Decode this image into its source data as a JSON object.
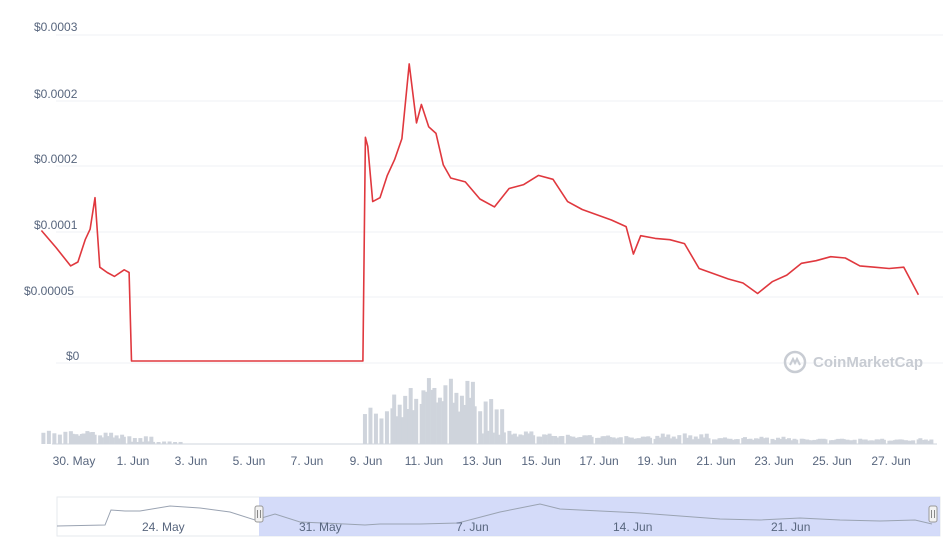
{
  "colors": {
    "price_line": "#e0383e",
    "volume": "#cfd4dc",
    "grid": "#eff2f5",
    "axis_text": "#58667e",
    "navigator_band": "#cdd5f8"
  },
  "watermark": {
    "text": "CoinMarketCap",
    "icon": "coinmarketcap-logo-icon"
  },
  "y_axis": {
    "ticks": [
      "$0.0003",
      "$0.0002",
      "$0.0002",
      "$0.0001",
      "$0.00005",
      "$0"
    ]
  },
  "x_axis": {
    "ticks": [
      "30. May",
      "1. Jun",
      "3. Jun",
      "5. Jun",
      "7. Jun",
      "9. Jun",
      "11. Jun",
      "13. Jun",
      "15. Jun",
      "17. Jun",
      "19. Jun",
      "21. Jun",
      "23. Jun",
      "25. Jun",
      "27. Jun"
    ]
  },
  "navigator": {
    "ticks": [
      "24. May",
      "31. May",
      "7. Jun",
      "14. Jun",
      "21. Jun"
    ],
    "range": [
      "2021-05-29",
      "2021-06-28"
    ]
  },
  "chart_data": {
    "type": "line",
    "title": "",
    "xlabel": "",
    "ylabel": "",
    "x_type": "date",
    "ylim": [
      0,
      0.00025
    ],
    "grid": true,
    "series": [
      {
        "type": "line",
        "x": [
          "2021-05-29",
          "2021-05-29 12:00",
          "2021-05-30",
          "2021-05-30 06:00",
          "2021-05-30 12:00",
          "2021-05-30 16:00",
          "2021-05-30 20:00",
          "2021-05-31",
          "2021-05-31 06:00",
          "2021-05-31 12:00",
          "2021-05-31 20:00",
          "2021-06-01",
          "2021-06-01 02:00",
          "2021-06-01 04:00",
          "2021-06-09 00:00",
          "2021-06-09 02:00",
          "2021-06-09 04:00",
          "2021-06-09 08:00",
          "2021-06-09 14:00",
          "2021-06-09 20:00",
          "2021-06-10 02:00",
          "2021-06-10 08:00",
          "2021-06-10 14:00",
          "2021-06-10 20:00",
          "2021-06-11",
          "2021-06-11 06:00",
          "2021-06-11 12:00",
          "2021-06-11 18:00",
          "2021-06-12",
          "2021-06-12 12:00",
          "2021-06-13",
          "2021-06-13 12:00",
          "2021-06-14",
          "2021-06-14 12:00",
          "2021-06-15",
          "2021-06-15 12:00",
          "2021-06-16",
          "2021-06-16 12:00",
          "2021-06-17",
          "2021-06-17 12:00",
          "2021-06-18",
          "2021-06-18 06:00",
          "2021-06-18 12:00",
          "2021-06-19",
          "2021-06-19 12:00",
          "2021-06-20",
          "2021-06-20 12:00",
          "2021-06-21",
          "2021-06-21 12:00",
          "2021-06-22",
          "2021-06-22 12:00",
          "2021-06-23",
          "2021-06-23 12:00",
          "2021-06-24",
          "2021-06-24 12:00",
          "2021-06-25",
          "2021-06-25 12:00",
          "2021-06-26",
          "2021-06-26 12:00",
          "2021-06-27",
          "2021-06-27 12:00",
          "2021-06-28"
        ],
        "y": [
          0.000101,
          8.8e-05,
          7.4e-05,
          7.7e-05,
          9.4e-05,
          0.000102,
          0.000126,
          7.3e-05,
          6.9e-05,
          6.6e-05,
          7.1e-05,
          6.9e-05,
          1.5e-06,
          1.5e-06,
          1.5e-06,
          0.000172,
          0.000165,
          0.000123,
          0.000126,
          0.000143,
          0.000155,
          0.000171,
          0.000228,
          0.000183,
          0.000197,
          0.00018,
          0.000175,
          0.000151,
          0.000141,
          0.000138,
          0.000125,
          0.000119,
          0.000133,
          0.000136,
          0.000143,
          0.00014,
          0.000123,
          0.000117,
          0.000113,
          0.000109,
          0.000104,
          8.3e-05,
          9.7e-05,
          9.5e-05,
          9.4e-05,
          9.1e-05,
          7.2e-05,
          6.8e-05,
          6.4e-05,
          6.1e-05,
          5.3e-05,
          6.2e-05,
          6.7e-05,
          7.6e-05,
          7.8e-05,
          8.1e-05,
          8e-05,
          7.4e-05,
          7.3e-05,
          7.2e-05,
          7.3e-05,
          5.2e-05
        ]
      },
      {
        "type": "bar",
        "x": [
          "2021-05-29",
          "2021-05-30",
          "2021-05-31",
          "2021-06-01",
          "2021-06-09",
          "2021-06-10",
          "2021-06-11",
          "2021-06-12",
          "2021-06-13",
          "2021-06-14",
          "2021-06-15",
          "2021-06-16",
          "2021-06-17",
          "2021-06-18",
          "2021-06-19",
          "2021-06-20",
          "2021-06-21",
          "2021-06-22",
          "2021-06-23",
          "2021-06-24",
          "2021-06-25",
          "2021-06-26",
          "2021-06-27",
          "2021-06-28"
        ],
        "y": [
          20,
          18,
          12,
          4,
          55,
          85,
          100,
          70,
          20,
          16,
          14,
          13,
          12,
          11,
          16,
          10,
          9,
          11,
          8,
          8,
          8,
          7,
          7,
          9
        ]
      }
    ]
  }
}
